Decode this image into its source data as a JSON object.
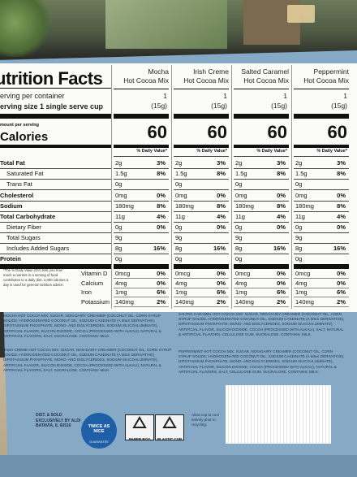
{
  "nutrition": {
    "title": "utrition Facts",
    "servings_per_container": "erving per container",
    "serving_size": "erving size  1 single serve cup",
    "amount_per_serving": "mount per serving",
    "calories_label": "Calories",
    "dv_header": "% Daily Value*",
    "footnote": "*The % Daily Value (DV) tells you how much a nutrient in a serving of food contributes to a daily diet. 2,000 calories a day is used for general nutrition advice.",
    "products": [
      {
        "name_line1": "Mocha",
        "name_line2": "Hot Cocoa Mix",
        "servings": "1",
        "size": "(15g)",
        "calories": "60"
      },
      {
        "name_line1": "Irish Creme",
        "name_line2": "Hot Cocoa Mix",
        "servings": "1",
        "size": "(15g)",
        "calories": "60"
      },
      {
        "name_line1": "Salted Caramel",
        "name_line2": "Hot Cocoa Mix",
        "servings": "1",
        "size": "(15g)",
        "calories": "60"
      },
      {
        "name_line1": "Peppermint",
        "name_line2": "Hot Cocoa Mix",
        "servings": "1",
        "size": "(15g)",
        "calories": "60"
      }
    ],
    "nutrients": [
      {
        "label": "Total Fat",
        "bold": true,
        "values": [
          [
            "2g",
            "3%"
          ],
          [
            "2g",
            "3%"
          ],
          [
            "2g",
            "3%"
          ],
          [
            "2g",
            "3%"
          ]
        ]
      },
      {
        "label": "Saturated Fat",
        "bold": false,
        "values": [
          [
            "1.5g",
            "8%"
          ],
          [
            "1.5g",
            "8%"
          ],
          [
            "1.5g",
            "8%"
          ],
          [
            "1.5g",
            "8%"
          ]
        ]
      },
      {
        "label": "Trans Fat",
        "bold": false,
        "values": [
          [
            "0g",
            ""
          ],
          [
            "0g",
            ""
          ],
          [
            "0g",
            ""
          ],
          [
            "0g",
            ""
          ]
        ]
      },
      {
        "label": "Cholesterol",
        "bold": true,
        "values": [
          [
            "0mg",
            "0%"
          ],
          [
            "0mg",
            "0%"
          ],
          [
            "0mg",
            "0%"
          ],
          [
            "0mg",
            "0%"
          ]
        ]
      },
      {
        "label": "Sodium",
        "bold": true,
        "values": [
          [
            "180mg",
            "8%"
          ],
          [
            "180mg",
            "8%"
          ],
          [
            "180mg",
            "8%"
          ],
          [
            "180mg",
            "8%"
          ]
        ]
      },
      {
        "label": "Total Carbohydrate",
        "bold": true,
        "values": [
          [
            "11g",
            "4%"
          ],
          [
            "11g",
            "4%"
          ],
          [
            "11g",
            "4%"
          ],
          [
            "11g",
            "4%"
          ]
        ]
      },
      {
        "label": "Dietary Fiber",
        "bold": false,
        "values": [
          [
            "0g",
            "0%"
          ],
          [
            "0g",
            "0%"
          ],
          [
            "0g",
            "0%"
          ],
          [
            "0g",
            "0%"
          ]
        ]
      },
      {
        "label": "Total Sugars",
        "bold": false,
        "values": [
          [
            "9g",
            ""
          ],
          [
            "9g",
            ""
          ],
          [
            "9g",
            ""
          ],
          [
            "9g",
            ""
          ]
        ]
      },
      {
        "label": "Includes Added Sugars",
        "bold": false,
        "values": [
          [
            "8g",
            "16%"
          ],
          [
            "8g",
            "16%"
          ],
          [
            "8g",
            "16%"
          ],
          [
            "8g",
            "16%"
          ]
        ]
      },
      {
        "label": "Protein",
        "bold": true,
        "values": [
          [
            "0g",
            ""
          ],
          [
            "0g",
            ""
          ],
          [
            "0g",
            ""
          ],
          [
            "0g",
            ""
          ]
        ]
      }
    ],
    "vitamins": [
      {
        "label": "Vitamin D",
        "values": [
          [
            "0mcg",
            "0%"
          ],
          [
            "0mcg",
            "0%"
          ],
          [
            "0mcg",
            "0%"
          ],
          [
            "0mcg",
            "0%"
          ]
        ]
      },
      {
        "label": "Calcium",
        "values": [
          [
            "4mg",
            "0%"
          ],
          [
            "4mg",
            "0%"
          ],
          [
            "4mg",
            "0%"
          ],
          [
            "4mg",
            "0%"
          ]
        ]
      },
      {
        "label": "Iron",
        "values": [
          [
            "1mg",
            "6%"
          ],
          [
            "1mg",
            "6%"
          ],
          [
            "1mg",
            "6%"
          ],
          [
            "1mg",
            "6%"
          ]
        ]
      },
      {
        "label": "Potassium",
        "values": [
          [
            "140mg",
            "2%"
          ],
          [
            "140mg",
            "2%"
          ],
          [
            "140mg",
            "2%"
          ],
          [
            "140mg",
            "2%"
          ]
        ]
      }
    ]
  },
  "ingredients": {
    "mocha": "MOCHA HOT COCOA MIX: SUGAR, NON-DAIRY CREAMER (COCONUT OIL, CORN SYRUP SOLIDS, HYDROGENATED COCONUT OIL, SODIUM CASEINATE (A MILK DERIVATIVE), DIPOTASSIUM PHOSPHATE, MONO- AND DIGLYCERIDES, SODIUM SILICOALUMINATE), ARTIFICIAL FLAVOR, SILICON DIOXIDE, COCOA (PROCESSED WITH ALKALI), NATURAL & ARTIFICIAL FLAVORS, SALT, SUCRALOSE. CONTAINS: MILK.",
    "irish": "IRISH CREME HOT COCOA MIX: SUGAR, NON-DAIRY CREAMER (COCONUT OIL, CORN SYRUP SOLIDS, HYDROGENATED COCONUT OIL, SODIUM CASEINATE (A MILK DERIVATIVE), DIPOTASSIUM PHOSPHATE, MONO- AND DIGLYCERIDES, SODIUM SILICOALUMINATE), ARTIFICIAL FLAVOR, SILICON DIOXIDE, COCOA (PROCESSED WITH ALKALI), NATURAL & ARTIFICIAL FLAVORS, SALT, SUCRALOSE. CONTAINS: MILK.",
    "salted": "SALTED CARAMEL HOT COCOA MIX: SUGAR, NON-DAIRY CREAMER (COCONUT OIL, CORN SYRUP SOLIDS, HYDROGENATED COCONUT OIL, SODIUM CASEINATE (A MILK DERIVATIVE), DIPOTASSIUM PHOSPHATE, MONO- AND DIGLYCERIDES, SODIUM SILICOALUMINATE), ARTIFICIAL FLAVOR, SILICON DIOXIDE, COCOA (PROCESSED WITH ALKALI), SALT, NATURAL & ARTIFICIAL FLAVORS, CELLULOSE GUM, SUCRALOSE. CONTAINS: MILK.",
    "peppermint": "PEPPERMINT HOT COCOA MIX: SUGAR, NON-DAIRY CREAMER (COCONUT OIL, CORN SYRUP SOLIDS, HYDROGENATED COCONUT OIL, SODIUM CASEINATE (A MILK DERIVATIVE), DIPOTASSIUM PHOSPHATE, MONO- AND DIGLYCERIDES, SODIUM SILICOALUMINATE), ARTIFICIAL FLAVOR, SILICON DIOXIDE, COCOA (PROCESSED WITH ALKALI), NATURAL & ARTIFICIAL FLAVORS, SALT, CELLULOSE GUM, SUCRALOSE. CONTAINS: MILK."
  },
  "bottom": {
    "distributed": "DIST. & SOLD EXCLUSIVELY BY ALDI BATAVIA, IL 60510",
    "badge_line1": "TWICE AS NICE",
    "badge_line2": "GUARANTEE",
    "recycle_paper": "PAPER BOX",
    "recycle_plastic": "PLASTIC CUP",
    "recycle_note": "Allow cup to cool entirely prior to recycling."
  },
  "colors": {
    "box_blue": "#86aac6",
    "panel_white": "#fbfbf8",
    "text_dark": "#111111",
    "badge_blue": "#1f5fa8"
  }
}
